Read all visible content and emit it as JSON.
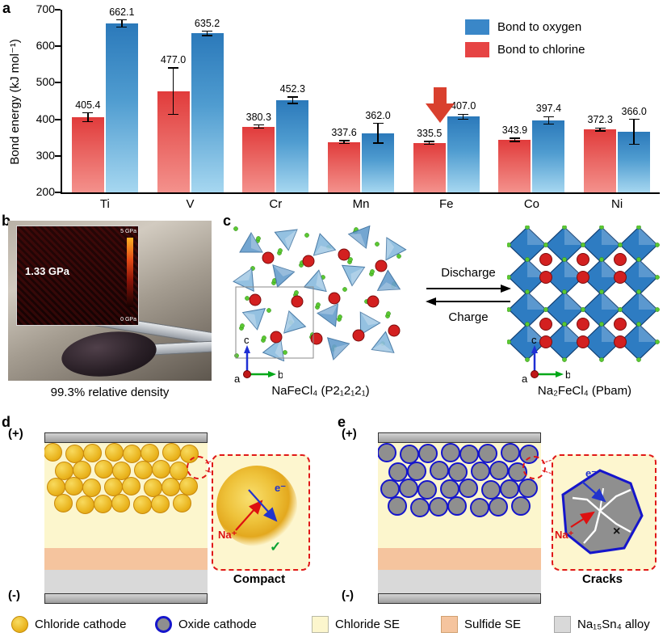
{
  "panels": {
    "a": "a",
    "b": "b",
    "c": "c",
    "d": "d",
    "e": "e"
  },
  "chart_data": {
    "type": "bar",
    "title": "",
    "ylabel": "Bond energy (kJ mol⁻¹)",
    "categories": [
      "Ti",
      "V",
      "Cr",
      "Mn",
      "Fe",
      "Co",
      "Ni"
    ],
    "ylim": [
      200,
      700
    ],
    "yticks": [
      200,
      300,
      400,
      500,
      600,
      700
    ],
    "grid": false,
    "series": [
      {
        "name": "Bond to chlorine",
        "color": "#e64444",
        "values": [
          405.4,
          477.0,
          380.3,
          337.6,
          335.5,
          343.9,
          372.3
        ],
        "errors": [
          12,
          64,
          4,
          4,
          4,
          4,
          4
        ]
      },
      {
        "name": "Bond to oxygen",
        "color": "#3a87c8",
        "values": [
          662.1,
          635.2,
          452.3,
          362.0,
          407.0,
          397.4,
          366.0
        ],
        "errors": [
          10,
          6,
          9,
          27,
          7,
          10,
          34
        ]
      }
    ],
    "legend": [
      {
        "label": "Bond to oxygen",
        "color": "#3a87c8"
      },
      {
        "label": "Bond to chlorine",
        "color": "#e64444"
      }
    ],
    "legend_position": "top-right",
    "annotation": {
      "type": "down-arrow",
      "category": "Fe",
      "color": "#d9402e"
    }
  },
  "panel_b": {
    "hardness_value": "1.33 GPa",
    "scale_max": "5 GPa",
    "scale_min": "0 GPa",
    "caption": "99.3% relative density"
  },
  "panel_c": {
    "discharge_label": "Discharge",
    "charge_label": "Charge",
    "left_structure_label": "NaFeCl₄ (P2₁2₁2₁)",
    "right_structure_label": "Na₂FeCl₄ (Pbam)",
    "axes": {
      "a": "a",
      "b": "b",
      "c": "c"
    }
  },
  "panel_d": {
    "plus": "(+)",
    "minus": "(-)",
    "inset": {
      "na_label": "Na⁺",
      "e_label": "e⁻",
      "mark": "✓",
      "caption": "Compact"
    }
  },
  "panel_e": {
    "plus": "(+)",
    "minus": "(-)",
    "inset": {
      "na_label": "Na⁺",
      "e_label": "e⁻",
      "mark": "×",
      "caption": "Cracks"
    }
  },
  "bottom_legend": {
    "items": [
      {
        "swatch_class": "sw-chloride-cathode",
        "label": "Chloride cathode"
      },
      {
        "swatch_class": "sw-oxide-cathode",
        "label": "Oxide cathode"
      },
      {
        "swatch_class": "sw-chloride-se",
        "label": "Chloride SE"
      },
      {
        "swatch_class": "sw-sulfide-se",
        "label": "Sulfide SE"
      },
      {
        "swatch_class": "sw-alloy",
        "label": "Na₁₅Sn₄ alloy"
      }
    ]
  }
}
